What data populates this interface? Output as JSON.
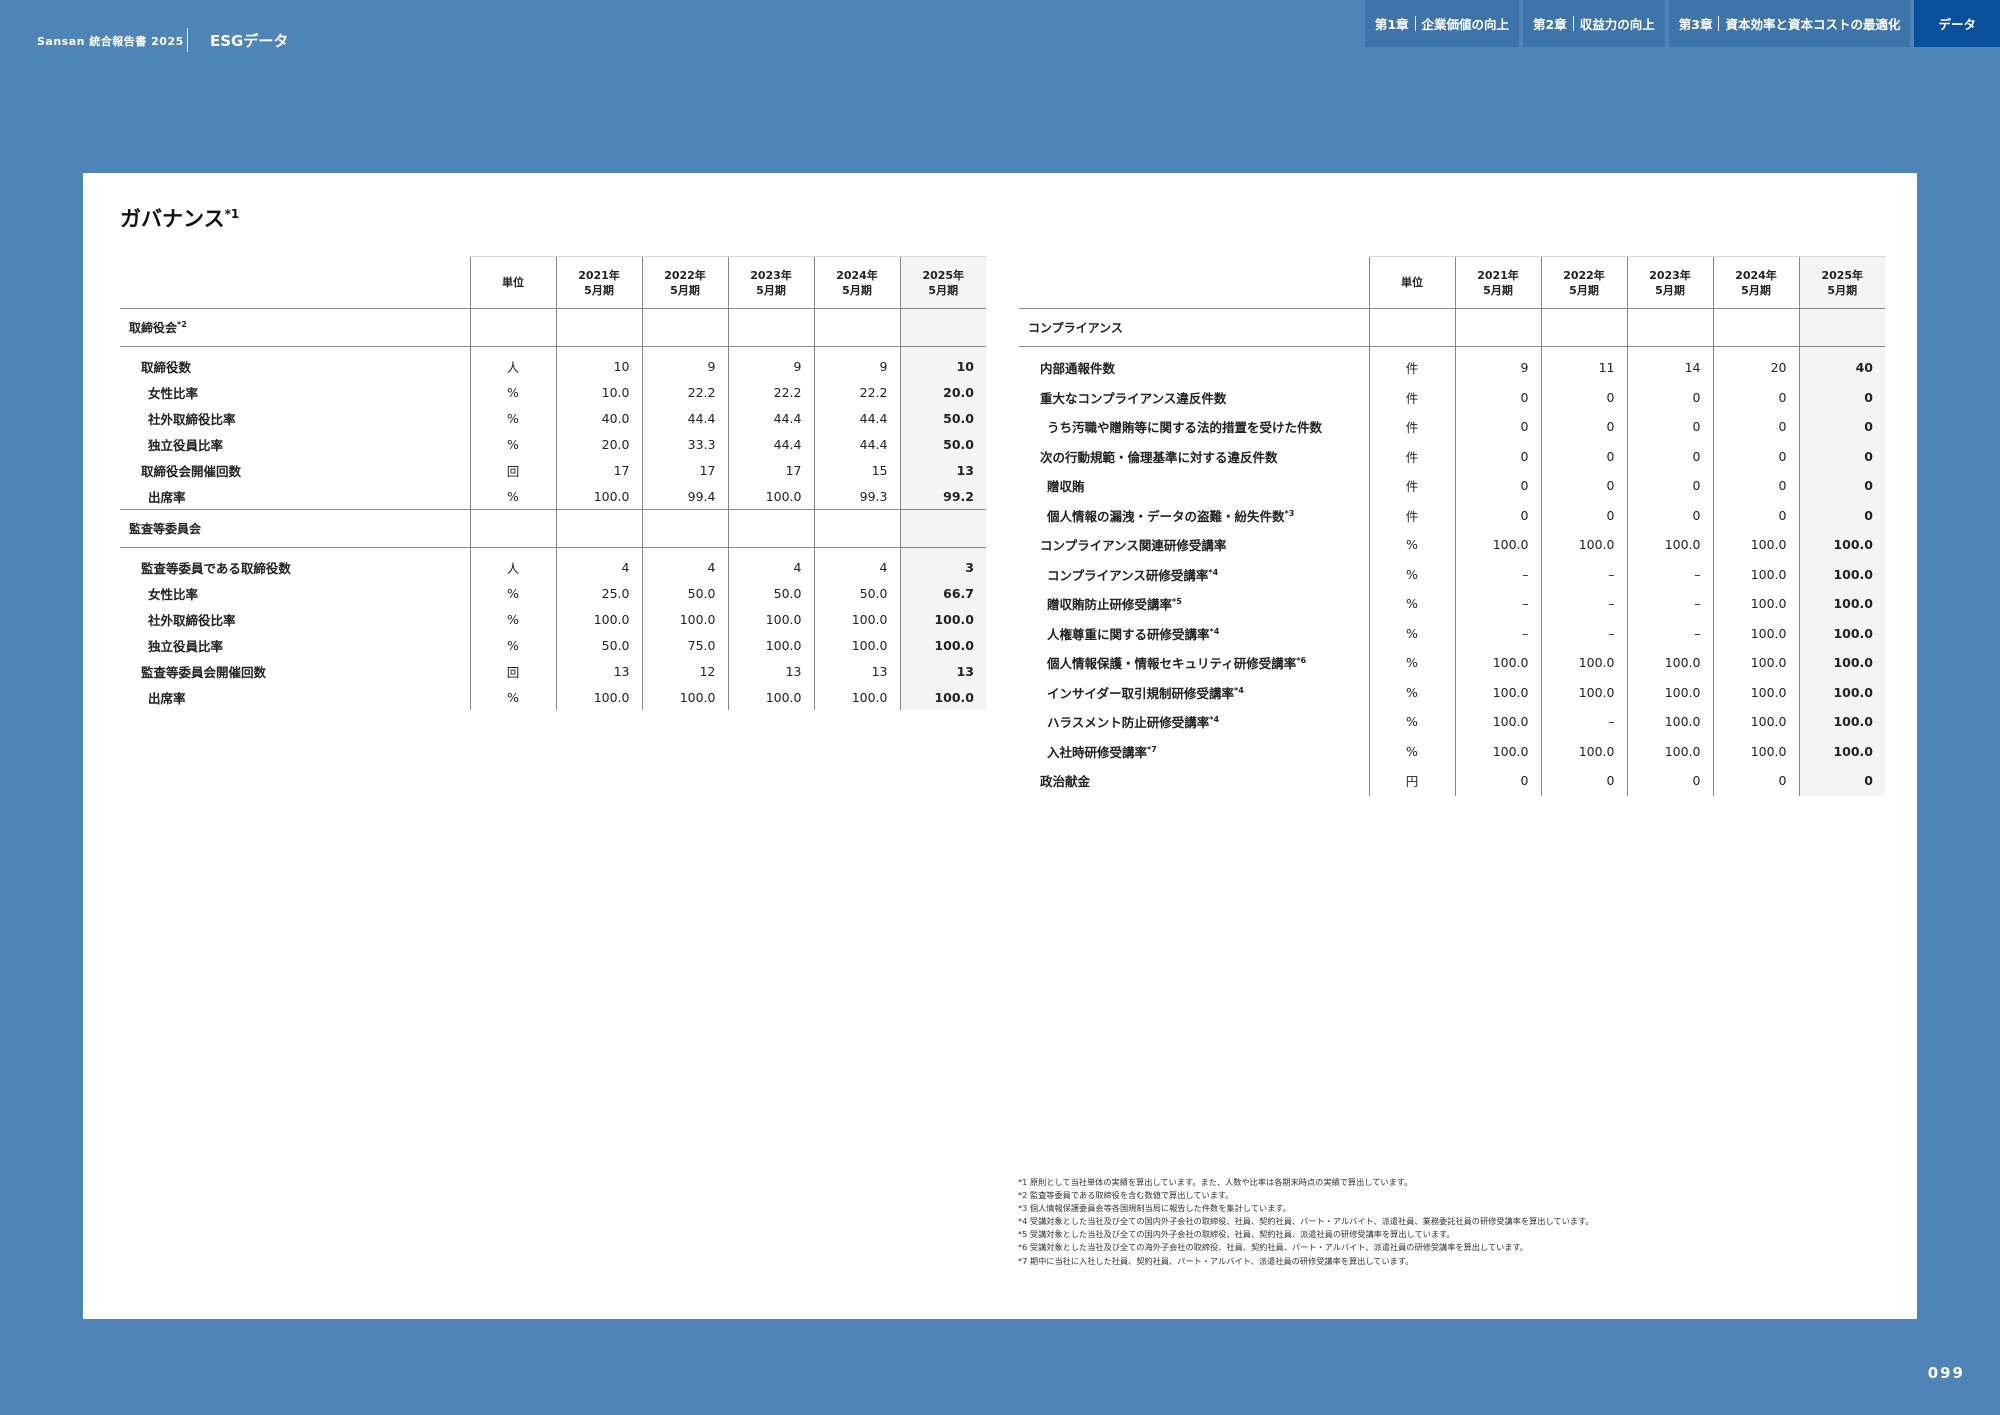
{
  "header": {
    "brand": "Sansan 統合報告書 2025",
    "section": "ESGデータ",
    "nav": [
      {
        "chapter": "第1章",
        "title": "企業価値の向上"
      },
      {
        "chapter": "第2章",
        "title": "収益力の向上"
      },
      {
        "chapter": "第3章",
        "title": "資本効率と資本コストの最適化"
      }
    ],
    "nav_active": "データ"
  },
  "page_number": "099",
  "title": "ガバナンス",
  "title_note": "*1",
  "columns": {
    "unit": "単位",
    "years": [
      [
        "2021年",
        "5月期"
      ],
      [
        "2022年",
        "5月期"
      ],
      [
        "2023年",
        "5月期"
      ],
      [
        "2024年",
        "5月期"
      ],
      [
        "2025年",
        "5月期"
      ]
    ]
  },
  "left_table": [
    {
      "type": "cat",
      "label": "取締役会",
      "note": "*2"
    },
    {
      "type": "row",
      "level": 1,
      "label": "取締役数",
      "unit": "人",
      "values": [
        "10",
        "9",
        "9",
        "9",
        "10"
      ]
    },
    {
      "type": "row",
      "level": 2,
      "label": "女性比率",
      "unit": "%",
      "values": [
        "10.0",
        "22.2",
        "22.2",
        "22.2",
        "20.0"
      ]
    },
    {
      "type": "row",
      "level": 2,
      "label": "社外取締役比率",
      "unit": "%",
      "values": [
        "40.0",
        "44.4",
        "44.4",
        "44.4",
        "50.0"
      ]
    },
    {
      "type": "row",
      "level": 2,
      "label": "独立役員比率",
      "unit": "%",
      "values": [
        "20.0",
        "33.3",
        "44.4",
        "44.4",
        "50.0"
      ]
    },
    {
      "type": "row",
      "level": 1,
      "label": "取締役会開催回数",
      "unit": "回",
      "values": [
        "17",
        "17",
        "17",
        "15",
        "13"
      ]
    },
    {
      "type": "row",
      "level": 2,
      "label": "出席率",
      "unit": "%",
      "values": [
        "100.0",
        "99.4",
        "100.0",
        "99.3",
        "99.2"
      ]
    },
    {
      "type": "cat",
      "label": "監査等委員会",
      "note": ""
    },
    {
      "type": "row",
      "level": 1,
      "label": "監査等委員である取締役数",
      "unit": "人",
      "values": [
        "4",
        "4",
        "4",
        "4",
        "3"
      ]
    },
    {
      "type": "row",
      "level": 2,
      "label": "女性比率",
      "unit": "%",
      "values": [
        "25.0",
        "50.0",
        "50.0",
        "50.0",
        "66.7"
      ]
    },
    {
      "type": "row",
      "level": 2,
      "label": "社外取締役比率",
      "unit": "%",
      "values": [
        "100.0",
        "100.0",
        "100.0",
        "100.0",
        "100.0"
      ]
    },
    {
      "type": "row",
      "level": 2,
      "label": "独立役員比率",
      "unit": "%",
      "values": [
        "50.0",
        "75.0",
        "100.0",
        "100.0",
        "100.0"
      ]
    },
    {
      "type": "row",
      "level": 1,
      "label": "監査等委員会開催回数",
      "unit": "回",
      "values": [
        "13",
        "12",
        "13",
        "13",
        "13"
      ]
    },
    {
      "type": "row",
      "level": 2,
      "label": "出席率",
      "unit": "%",
      "values": [
        "100.0",
        "100.0",
        "100.0",
        "100.0",
        "100.0"
      ]
    }
  ],
  "right_table": [
    {
      "type": "cat",
      "label": "コンプライアンス",
      "note": ""
    },
    {
      "type": "row",
      "level": 1,
      "label": "内部通報件数",
      "unit": "件",
      "values": [
        "9",
        "11",
        "14",
        "20",
        "40"
      ]
    },
    {
      "type": "row",
      "level": 1,
      "label": "重大なコンプライアンス違反件数",
      "unit": "件",
      "values": [
        "0",
        "0",
        "0",
        "0",
        "0"
      ]
    },
    {
      "type": "row",
      "level": 2,
      "label": "うち汚職や贈賄等に関する法的措置を受けた件数",
      "unit": "件",
      "values": [
        "0",
        "0",
        "0",
        "0",
        "0"
      ]
    },
    {
      "type": "row",
      "level": 1,
      "label": "次の行動規範・倫理基準に対する違反件数",
      "unit": "件",
      "values": [
        "0",
        "0",
        "0",
        "0",
        "0"
      ]
    },
    {
      "type": "row",
      "level": 2,
      "label": "贈収賄",
      "unit": "件",
      "values": [
        "0",
        "0",
        "0",
        "0",
        "0"
      ]
    },
    {
      "type": "row",
      "level": 2,
      "label": "個人情報の漏洩・データの盗難・紛失件数",
      "note": "*3",
      "unit": "件",
      "values": [
        "0",
        "0",
        "0",
        "0",
        "0"
      ]
    },
    {
      "type": "row",
      "level": 1,
      "label": "コンプライアンス関連研修受講率",
      "unit": "%",
      "values": [
        "100.0",
        "100.0",
        "100.0",
        "100.0",
        "100.0"
      ]
    },
    {
      "type": "row",
      "level": 2,
      "label": "コンプライアンス研修受講率",
      "note": "*4",
      "unit": "%",
      "values": [
        "–",
        "–",
        "–",
        "100.0",
        "100.0"
      ]
    },
    {
      "type": "row",
      "level": 2,
      "label": "贈収賄防止研修受講率",
      "note": "*5",
      "unit": "%",
      "values": [
        "–",
        "–",
        "–",
        "100.0",
        "100.0"
      ]
    },
    {
      "type": "row",
      "level": 2,
      "label": "人権尊重に関する研修受講率",
      "note": "*4",
      "unit": "%",
      "values": [
        "–",
        "–",
        "–",
        "100.0",
        "100.0"
      ]
    },
    {
      "type": "row",
      "level": 2,
      "label": "個人情報保護・情報セキュリティ研修受講率",
      "note": "*6",
      "unit": "%",
      "values": [
        "100.0",
        "100.0",
        "100.0",
        "100.0",
        "100.0"
      ]
    },
    {
      "type": "row",
      "level": 2,
      "label": "インサイダー取引規制研修受講率",
      "note": "*4",
      "unit": "%",
      "values": [
        "100.0",
        "100.0",
        "100.0",
        "100.0",
        "100.0"
      ]
    },
    {
      "type": "row",
      "level": 2,
      "label": "ハラスメント防止研修受講率",
      "note": "*4",
      "unit": "%",
      "values": [
        "100.0",
        "–",
        "100.0",
        "100.0",
        "100.0"
      ]
    },
    {
      "type": "row",
      "level": 2,
      "label": "入社時研修受講率",
      "note": "*7",
      "unit": "%",
      "values": [
        "100.0",
        "100.0",
        "100.0",
        "100.0",
        "100.0"
      ]
    },
    {
      "type": "row",
      "level": 1,
      "label": "政治献金",
      "unit": "円",
      "values": [
        "0",
        "0",
        "0",
        "0",
        "0"
      ]
    }
  ],
  "footnotes": [
    "*1 原則として当社単体の実績を算出しています。また、人数や比率は各期末時点の実績で算出しています。",
    "*2 監査等委員である取締役を含む数値で算出しています。",
    "*3 個人情報保護委員会等各国規制当局に報告した件数を集計しています。",
    "*4 受講対象とした当社及び全ての国内外子会社の取締役、社員、契約社員、パート・アルバイト、派遣社員、業務委託社員の研修受講率を算出しています。",
    "*5 受講対象とした当社及び全ての国内外子会社の取締役、社員、契約社員、派遣社員の研修受講率を算出しています。",
    "*6 受講対象とした当社及び全ての海外子会社の取締役、社員、契約社員、パート・アルバイト、派遣社員の研修受講率を算出しています。",
    "*7 期中に当社に入社した社員、契約社員、パート・アルバイト、派遣社員の研修受講率を算出しています。"
  ]
}
